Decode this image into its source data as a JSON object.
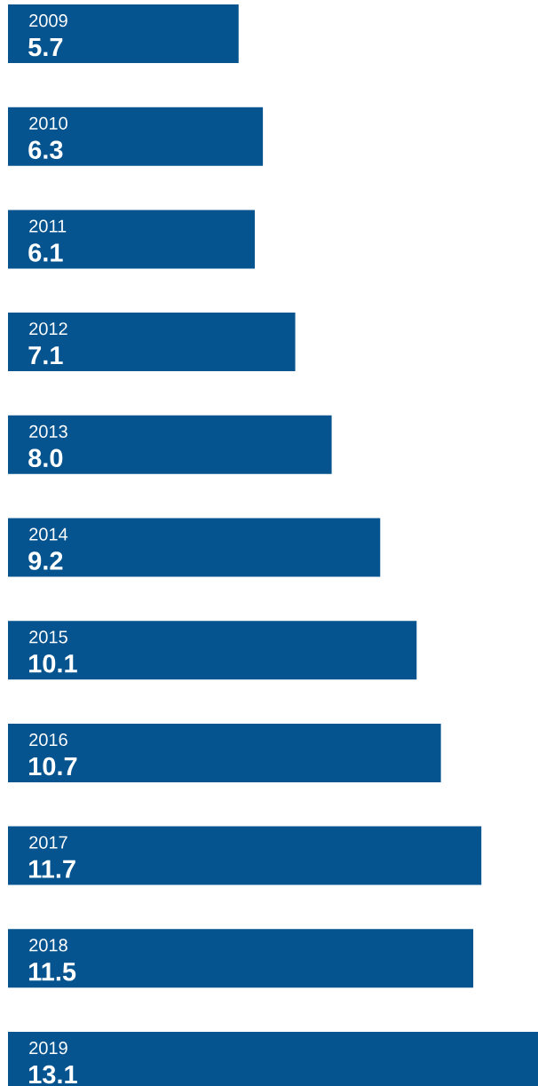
{
  "chart_data": {
    "type": "bar",
    "orientation": "horizontal",
    "categories": [
      "2009",
      "2010",
      "2011",
      "2012",
      "2013",
      "2014",
      "2015",
      "2016",
      "2017",
      "2018",
      "2019"
    ],
    "values": [
      5.7,
      6.3,
      6.1,
      7.1,
      8.0,
      9.2,
      10.1,
      10.7,
      11.7,
      11.5,
      13.1
    ],
    "value_labels": [
      "5.7",
      "6.3",
      "6.1",
      "7.1",
      "8.0",
      "9.2",
      "10.1",
      "10.7",
      "11.7",
      "11.5",
      "13.1"
    ],
    "color": "#05548f"
  }
}
